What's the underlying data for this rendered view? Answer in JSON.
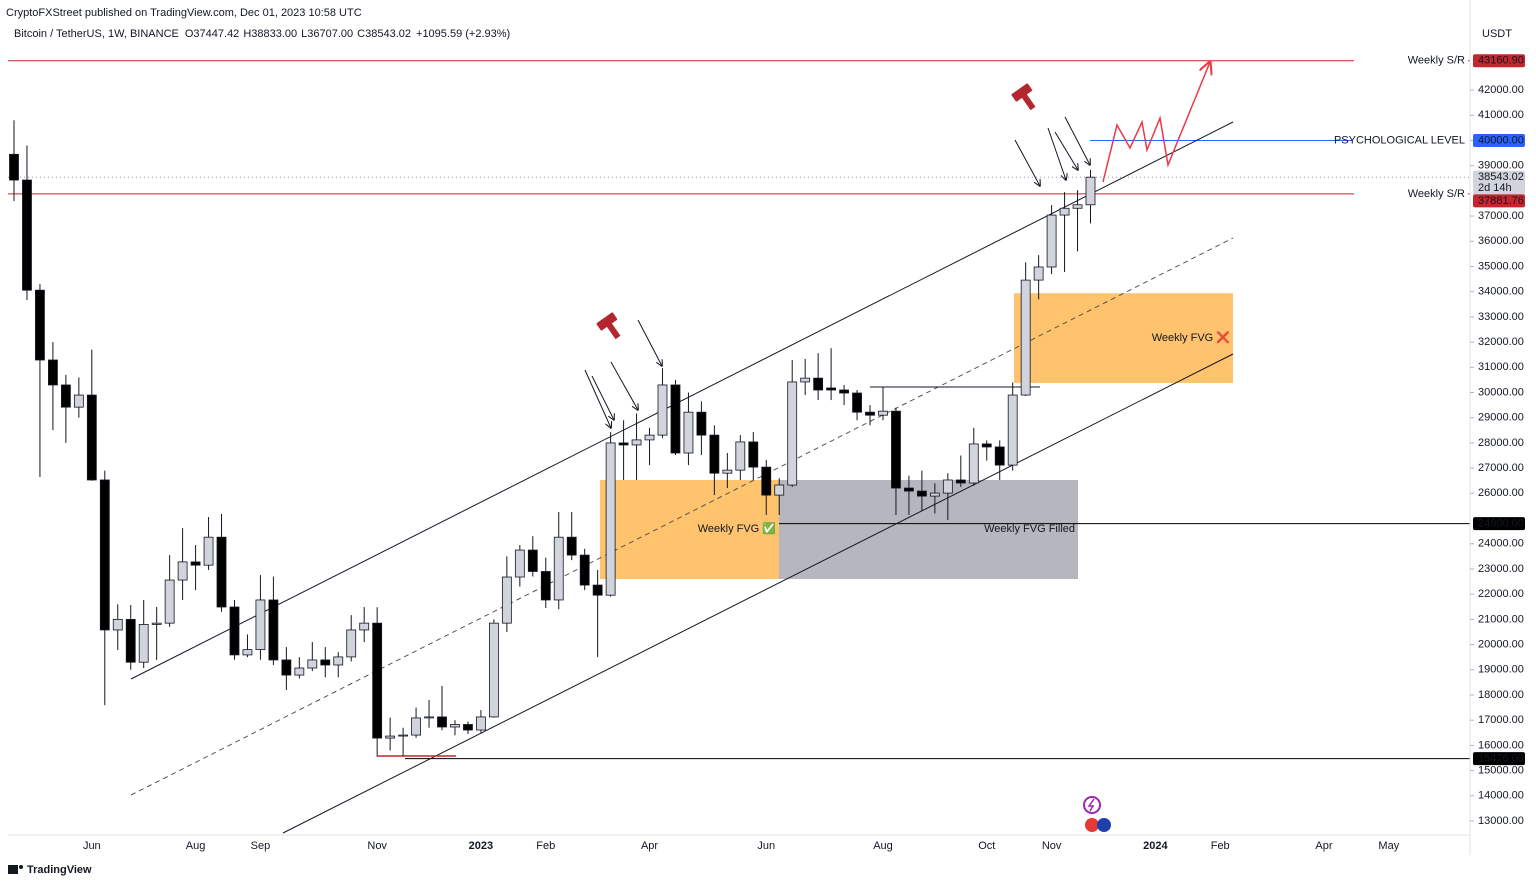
{
  "publisher": "CryptoFXStreet published on TradingView.com, Dec 01, 2023 10:58 UTC",
  "footer": "TradingView",
  "chart_data": {
    "type": "candlestick",
    "symbol": "Bitcoin / TetherUS, 1W, BINANCE",
    "fields": [
      {
        "key": "O",
        "label": "37447.42"
      },
      {
        "key": "H",
        "label": "38833.00"
      },
      {
        "key": "L",
        "label": "36707.00"
      },
      {
        "key": "C",
        "label": "38543.02"
      }
    ],
    "change": "+1095.59 (+2.93%)",
    "currency": "USDT",
    "categories": [
      null,
      null,
      null,
      null,
      null,
      null,
      "Jun",
      null,
      null,
      null,
      null,
      null,
      null,
      null,
      "Aug",
      null,
      null,
      null,
      null,
      "Sep",
      null,
      null,
      null,
      null,
      null,
      null,
      null,
      null,
      "Nov",
      null,
      null,
      null,
      null,
      null,
      null,
      null,
      "2023",
      null,
      null,
      null,
      null,
      "Feb",
      null,
      null,
      null,
      null,
      null,
      null,
      null,
      "Apr",
      null,
      null,
      null,
      null,
      null,
      null,
      null,
      null,
      "Jun",
      null,
      null,
      null,
      null,
      null,
      null,
      null,
      null,
      "Aug",
      null,
      null,
      null,
      null,
      null,
      null,
      null,
      "Oct",
      null,
      null,
      null,
      null,
      "Nov",
      null,
      null,
      null,
      null,
      null,
      null,
      null,
      "2024",
      null,
      null,
      null,
      null,
      "Feb",
      null,
      null,
      null,
      null,
      null,
      null,
      null,
      "Apr",
      null,
      null,
      null,
      null,
      "May",
      null,
      null,
      null,
      null
    ],
    "open": [
      39450,
      38430,
      34060,
      31290,
      30300,
      29420,
      29900,
      26530,
      20580,
      21000,
      19300,
      20800,
      20850,
      22560,
      23280,
      23150,
      24260,
      21490,
      19590,
      19800,
      21770,
      19390,
      18790,
      19070,
      19390,
      19190,
      19510,
      20580,
      20850,
      16290,
      16370,
      16410,
      17090,
      17130,
      16730,
      16830,
      16610,
      17130,
      20850,
      22680,
      23750,
      22900,
      21770,
      24260,
      23550,
      22360,
      21960,
      28000,
      27920,
      28120,
      28310,
      30300,
      27600,
      29220,
      28310,
      26800,
      26920,
      28040,
      27040,
      25930,
      26330,
      30420,
      30570,
      30180,
      30100,
      29980,
      29220,
      29100,
      29260,
      26210,
      26090,
      25890,
      26010,
      26530,
      26410,
      27960,
      27840,
      27120,
      29900,
      34460,
      34980,
      37040,
      37310,
      37447.42,
      null,
      null,
      null,
      null,
      null,
      null,
      null,
      null,
      null,
      null,
      null,
      null,
      null,
      null,
      null,
      null,
      null,
      null,
      null,
      null,
      null,
      null,
      null,
      null,
      null,
      null,
      null
    ],
    "high": [
      40800,
      39800,
      34300,
      32000,
      30700,
      30600,
      31700,
      26900,
      21600,
      21570,
      21770,
      21490,
      23550,
      24620,
      23950,
      25060,
      25180,
      21770,
      20400,
      22760,
      22700,
      19900,
      19500,
      20100,
      19900,
      19700,
      21170,
      21490,
      21480,
      17100,
      16700,
      17500,
      17800,
      18360,
      17000,
      16950,
      17400,
      21000,
      23500,
      23950,
      24300,
      23450,
      25260,
      25260,
      23800,
      22960,
      28430,
      28900,
      29170,
      28600,
      30970,
      30500,
      30000,
      29650,
      28700,
      27600,
      28310,
      28430,
      27330,
      26600,
      31290,
      31330,
      31560,
      31760,
      30300,
      30100,
      29500,
      30200,
      29400,
      26700,
      26900,
      26400,
      26800,
      27500,
      28600,
      28100,
      28100,
      30400,
      35170,
      35450,
      37440,
      37950,
      38030,
      38833,
      null,
      null,
      null,
      null,
      null,
      null,
      null,
      null,
      null,
      null,
      null,
      null,
      null,
      null,
      null,
      null,
      null,
      null,
      null,
      null,
      null,
      null,
      null,
      null,
      null,
      null,
      null
    ],
    "low": [
      37600,
      33670,
      26650,
      28510,
      28000,
      29000,
      26500,
      17600,
      19780,
      19000,
      19070,
      19390,
      20700,
      21770,
      22160,
      22960,
      21300,
      19400,
      19500,
      19400,
      19190,
      18200,
      18650,
      18950,
      18700,
      18700,
      19330,
      20100,
      15540,
      15800,
      15580,
      16300,
      16700,
      16600,
      16400,
      16450,
      16500,
      17100,
      20500,
      22300,
      22700,
      21450,
      21400,
      23350,
      22160,
      19510,
      21900,
      26530,
      26530,
      27120,
      28200,
      27520,
      27120,
      27520,
      25930,
      26210,
      26530,
      26530,
      25140,
      25140,
      26250,
      29900,
      29700,
      29700,
      29500,
      28900,
      28700,
      28900,
      25140,
      25140,
      25300,
      25200,
      24940,
      26250,
      26300,
      27300,
      26530,
      26900,
      29860,
      33700,
      34700,
      34780,
      35600,
      36707,
      null,
      null,
      null,
      null,
      null,
      null,
      null,
      null,
      null,
      null,
      null,
      null,
      null,
      null,
      null,
      null,
      null,
      null,
      null,
      null,
      null,
      null,
      null,
      null,
      null,
      null,
      null
    ],
    "close": [
      38430,
      34060,
      31290,
      30300,
      29420,
      29900,
      26530,
      20580,
      21000,
      19300,
      20800,
      20850,
      22560,
      23280,
      23150,
      24260,
      21490,
      19590,
      19800,
      21770,
      19390,
      18790,
      19070,
      19390,
      19190,
      19510,
      20580,
      20850,
      16290,
      16370,
      16410,
      17090,
      17130,
      16730,
      16830,
      16610,
      17130,
      20850,
      22680,
      23750,
      22900,
      21770,
      24260,
      23550,
      22360,
      21960,
      28000,
      27920,
      28120,
      28310,
      30300,
      27600,
      29220,
      28310,
      26800,
      26920,
      28040,
      27040,
      25930,
      26330,
      30420,
      30570,
      30100,
      30100,
      29980,
      29220,
      29100,
      29260,
      26210,
      26090,
      25890,
      26010,
      26530,
      26410,
      27960,
      27840,
      27120,
      29900,
      34460,
      34980,
      37040,
      37310,
      37450,
      38543.02,
      null,
      null,
      null,
      null,
      null,
      null,
      null,
      null,
      null,
      null,
      null,
      null,
      null,
      null,
      null,
      null,
      null,
      null,
      null,
      null,
      null,
      null,
      null,
      null,
      null,
      null,
      null
    ],
    "up_color": "#d1d4dc",
    "down_color": "#000000",
    "ylim": [
      12445,
      44700
    ],
    "yticks": [
      {
        "value": 13000,
        "label": "13000.00"
      },
      {
        "value": 14000,
        "label": "14000.00"
      },
      {
        "value": 15000,
        "label": "15000.00"
      },
      {
        "value": 16000,
        "label": "16000.00"
      },
      {
        "value": 17000,
        "label": "17000.00"
      },
      {
        "value": 18000,
        "label": "18000.00"
      },
      {
        "value": 19000,
        "label": "19000.00"
      },
      {
        "value": 20000,
        "label": "20000.00"
      },
      {
        "value": 21000,
        "label": "21000.00"
      },
      {
        "value": 22000,
        "label": "22000.00"
      },
      {
        "value": 23000,
        "label": "23000.00"
      },
      {
        "value": 24000,
        "label": "24000.00"
      },
      {
        "value": 26000,
        "label": "26000.00"
      },
      {
        "value": 27000,
        "label": "27000.00"
      },
      {
        "value": 28000,
        "label": "28000.00"
      },
      {
        "value": 29000,
        "label": "29000.00"
      },
      {
        "value": 30000,
        "label": "30000.00"
      },
      {
        "value": 31000,
        "label": "31000.00"
      },
      {
        "value": 32000,
        "label": "32000.00"
      },
      {
        "value": 33000,
        "label": "33000.00"
      },
      {
        "value": 34000,
        "label": "34000.00"
      },
      {
        "value": 35000,
        "label": "35000.00"
      },
      {
        "value": 36000,
        "label": "36000.00"
      },
      {
        "value": 37000,
        "label": "37000.00"
      },
      {
        "value": 39000,
        "label": "39000.00"
      },
      {
        "value": 40000,
        "label": "40000.00"
      },
      {
        "value": 41000,
        "label": "41000.00"
      },
      {
        "value": 42000,
        "label": "42000.00"
      }
    ],
    "grid": false,
    "levels": [
      {
        "name": "Weekly S/R",
        "value": 43160.9,
        "value_label": "43160.90",
        "color": "#c4262e"
      },
      {
        "name": "PSYCHOLOGICAL LEVEL",
        "value": 40000,
        "value_label": "40000.00",
        "color": "#2962ff"
      },
      {
        "value": 38543.02,
        "value_label": "38543.02",
        "sub": "2d 14h",
        "color": "#d1d4dc"
      },
      {
        "name": "Weekly S/R",
        "value": 37881.76,
        "value_label": "37881.76",
        "color": "#c4262e"
      },
      {
        "value": 24800,
        "value_label": "24800.00",
        "color": "#000000"
      },
      {
        "value": 15476,
        "value_label": "15476.00",
        "color": "#000000"
      }
    ],
    "zones": [
      {
        "label": "Weekly FVG ✅",
        "top": 26530,
        "bottom": 22600,
        "color": "#ffc066"
      },
      {
        "label": "Weekly FVG Filled",
        "top": 26530,
        "bottom": 22600,
        "color": "#b2b3ba"
      },
      {
        "label": "Weekly FVG ❌",
        "top": 33940,
        "bottom": 30380,
        "color": "#ffc066"
      }
    ]
  }
}
